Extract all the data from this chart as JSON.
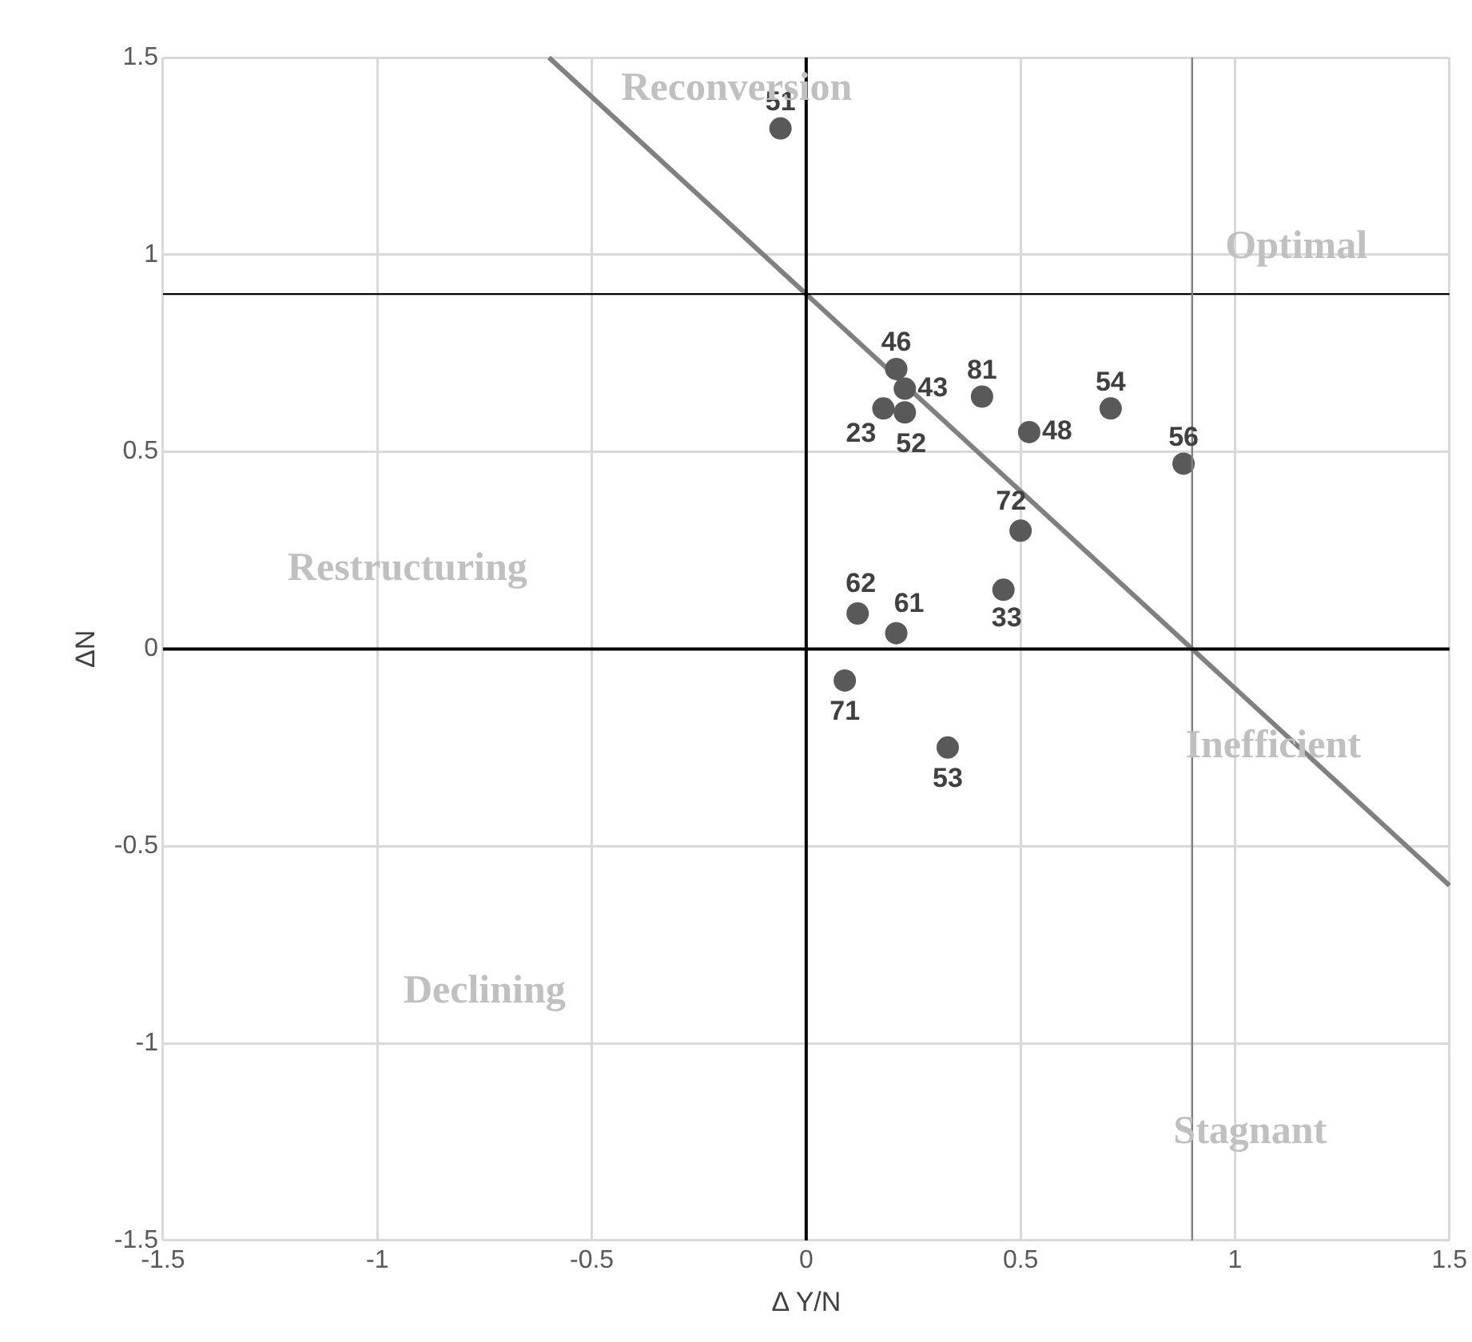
{
  "chart_data": {
    "type": "scatter",
    "xlabel": "Δ Y/N",
    "ylabel": "ΔN",
    "xlim": [
      -1.5,
      1.5
    ],
    "ylim": [
      -1.5,
      1.5
    ],
    "xticks": [
      -1.5,
      -1,
      -0.5,
      0,
      0.5,
      1,
      1.5
    ],
    "yticks": [
      -1.5,
      -1,
      -0.5,
      0,
      0.5,
      1,
      1.5
    ],
    "grid": true,
    "legend": false,
    "marker": "circle",
    "series": [
      {
        "color": "#595959",
        "x": [
          -0.06,
          0.21,
          0.23,
          0.18,
          0.23,
          0.41,
          0.52,
          0.71,
          0.88,
          0.5,
          0.46,
          0.12,
          0.21,
          0.09,
          0.33
        ],
        "values": [
          1.32,
          0.71,
          0.66,
          0.61,
          0.6,
          0.64,
          0.55,
          0.61,
          0.47,
          0.3,
          0.15,
          0.09,
          0.04,
          -0.08,
          -0.25
        ]
      },
      {
        "type": "line",
        "color": "#808080",
        "marker": "none",
        "line_style": "solid",
        "x": [
          -0.6,
          1.5
        ],
        "values": [
          1.5,
          -0.6
        ]
      }
    ],
    "ref_lines": [
      {
        "axis": "y",
        "value": 0.9,
        "color": "#000000"
      },
      {
        "axis": "x",
        "value": 0.9,
        "color": "#808080"
      }
    ],
    "annotations": [
      {
        "text": "51",
        "x": -0.06,
        "y": 1.32
      },
      {
        "text": "46",
        "x": 0.21,
        "y": 0.71
      },
      {
        "text": "43",
        "x": 0.23,
        "y": 0.66
      },
      {
        "text": "23",
        "x": 0.18,
        "y": 0.61
      },
      {
        "text": "52",
        "x": 0.23,
        "y": 0.6
      },
      {
        "text": "81",
        "x": 0.41,
        "y": 0.64
      },
      {
        "text": "48",
        "x": 0.52,
        "y": 0.55
      },
      {
        "text": "54",
        "x": 0.71,
        "y": 0.61
      },
      {
        "text": "56",
        "x": 0.88,
        "y": 0.47
      },
      {
        "text": "72",
        "x": 0.5,
        "y": 0.3
      },
      {
        "text": "33",
        "x": 0.46,
        "y": 0.15
      },
      {
        "text": "62",
        "x": 0.12,
        "y": 0.09
      },
      {
        "text": "61",
        "x": 0.21,
        "y": 0.04
      },
      {
        "text": "71",
        "x": 0.09,
        "y": -0.08
      },
      {
        "text": "53",
        "x": 0.33,
        "y": -0.25
      },
      "Reconversion",
      "Optimal",
      "Restructuring",
      "Inefficient",
      "Declining",
      "Stagnant"
    ]
  }
}
